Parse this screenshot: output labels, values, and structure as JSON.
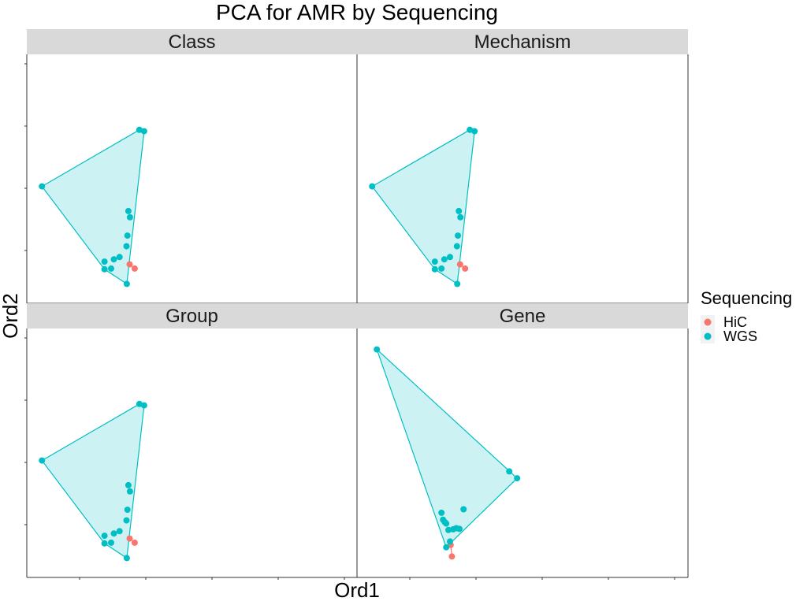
{
  "chart_data": {
    "type": "scatter",
    "title": "PCA for AMR by Sequencing",
    "xlabel": "Ord1",
    "ylabel": "Ord2",
    "grid": false,
    "legend": {
      "title": "Sequencing",
      "placement": "right",
      "entries": [
        {
          "name": "HiC",
          "color": "#F8766D"
        },
        {
          "name": "WGS",
          "color": "#00BFC4"
        }
      ]
    },
    "panel_order": [
      "Class",
      "Mechanism",
      "Group",
      "Gene"
    ],
    "panels": [
      {
        "name": "Class",
        "xlim": [
          0,
          100
        ],
        "ylim": [
          0,
          100
        ],
        "series": [
          {
            "name": "HiC",
            "color": "#F8766D",
            "x": [
              30.2,
              31.8
            ],
            "y": [
              12.8,
              11.0
            ]
          },
          {
            "name": "WGS",
            "color": "#00BFC4",
            "x": [
              2.3,
              33.3,
              34.8,
              29.8,
              30.3,
              29.5,
              29.2,
              27.0,
              25.2,
              22.2,
              24.3,
              22.2,
              29.3
            ],
            "y": [
              46.7,
              71.3,
              70.7,
              36.0,
              33.3,
              25.3,
              20.7,
              16.0,
              15.0,
              14.0,
              11.0,
              10.7,
              4.3
            ]
          }
        ]
      },
      {
        "name": "Mechanism",
        "xlim": [
          0,
          100
        ],
        "ylim": [
          0,
          100
        ],
        "series": [
          {
            "name": "HiC",
            "color": "#F8766D",
            "x": [
              30.2,
              31.8
            ],
            "y": [
              12.8,
              11.0
            ]
          },
          {
            "name": "WGS",
            "color": "#00BFC4",
            "x": [
              2.3,
              33.3,
              34.8,
              29.8,
              30.3,
              29.5,
              29.2,
              27.0,
              25.2,
              22.2,
              24.3,
              22.2,
              29.3
            ],
            "y": [
              46.7,
              71.3,
              70.7,
              36.0,
              33.3,
              25.3,
              20.7,
              16.0,
              15.0,
              14.0,
              11.0,
              10.7,
              4.3
            ]
          }
        ]
      },
      {
        "name": "Group",
        "xlim": [
          0,
          100
        ],
        "ylim": [
          0,
          100
        ],
        "series": [
          {
            "name": "HiC",
            "color": "#F8766D",
            "x": [
              30.2,
              31.8
            ],
            "y": [
              12.8,
              11.0
            ]
          },
          {
            "name": "WGS",
            "color": "#00BFC4",
            "x": [
              2.3,
              33.3,
              34.8,
              29.8,
              30.3,
              29.5,
              29.2,
              27.0,
              25.2,
              22.2,
              24.3,
              22.2,
              29.3
            ],
            "y": [
              46.7,
              71.3,
              70.7,
              36.0,
              33.3,
              25.3,
              20.7,
              16.0,
              15.0,
              14.0,
              11.0,
              10.7,
              4.3
            ]
          }
        ]
      },
      {
        "name": "Gene",
        "xlim": [
          0,
          100
        ],
        "ylim": [
          0,
          100
        ],
        "series": [
          {
            "name": "HiC",
            "color": "#F8766D",
            "x": [
              27.2,
              27.6
            ],
            "y": [
              10.0,
              5.0
            ]
          },
          {
            "name": "WGS",
            "color": "#00BFC4",
            "x": [
              3.8,
              45.8,
              48.3,
              31.3,
              24.3,
              24.8,
              25.3,
              25.8,
              26.5,
              28.0,
              29.0,
              30.0,
              27.0,
              25.8
            ],
            "y": [
              95.0,
              42.0,
              39.0,
              25.5,
              24.0,
              21.0,
              20.0,
              19.3,
              16.5,
              16.8,
              17.3,
              17.0,
              11.5,
              9.0
            ]
          }
        ]
      }
    ]
  }
}
